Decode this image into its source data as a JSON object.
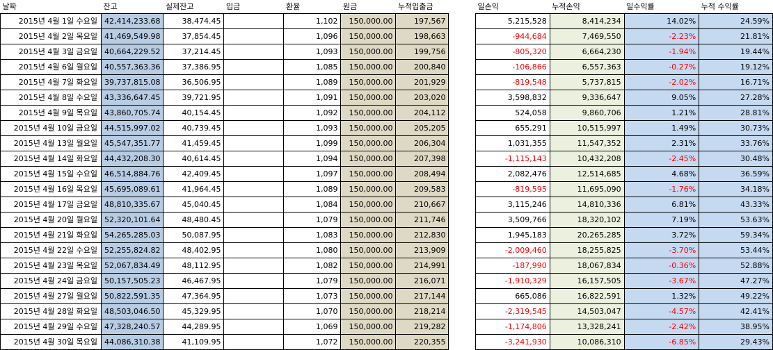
{
  "left_table": {
    "headers": [
      "날짜",
      "잔고",
      "실제잔고",
      "입금",
      "환율",
      "원금",
      "누적입출금"
    ],
    "rows": [
      [
        "2015년 4월 1일 수요일",
        "42,414,233.68",
        "38,474.45",
        "",
        "1,102",
        "150,000.00",
        "197,567"
      ],
      [
        "2015년 4월 2일 목요일",
        "41,469,549.98",
        "37,854.45",
        "",
        "1,096",
        "150,000.00",
        "198,663"
      ],
      [
        "2015년 4월 3일 금요일",
        "40,664,229.52",
        "37,214.45",
        "",
        "1,093",
        "150,000.00",
        "199,756"
      ],
      [
        "2015년 4월 6일 월요일",
        "40,557,363.36",
        "37,386.95",
        "",
        "1,085",
        "150,000.00",
        "200,840"
      ],
      [
        "2015년 4월 7일 화요일",
        "39,737,815.08",
        "36,506.95",
        "",
        "1,089",
        "150,000.00",
        "201,929"
      ],
      [
        "2015년 4월 8일 수요일",
        "43,336,647.45",
        "39,721.95",
        "",
        "1,091",
        "150,000.00",
        "203,020"
      ],
      [
        "2015년 4월 9일 목요일",
        "43,860,705.74",
        "40,154.45",
        "",
        "1,092",
        "150,000.00",
        "204,112"
      ],
      [
        "2015년 4월 10일 금요일",
        "44,515,997.02",
        "40,739.45",
        "",
        "1,093",
        "150,000.00",
        "205,205"
      ],
      [
        "2015년 4월 13일 월요일",
        "45,547,351.77",
        "41,459.45",
        "",
        "1,099",
        "150,000.00",
        "206,304"
      ],
      [
        "2015년 4월 14일 화요일",
        "44,432,208.30",
        "40,614.45",
        "",
        "1,094",
        "150,000.00",
        "207,398"
      ],
      [
        "2015년 4월 15일 수요일",
        "46,514,884.76",
        "42,409.45",
        "",
        "1,097",
        "150,000.00",
        "208,494"
      ],
      [
        "2015년 4월 16일 목요일",
        "45,695,089.61",
        "41,964.45",
        "",
        "1,089",
        "150,000.00",
        "209,583"
      ],
      [
        "2015년 4월 17일 금요일",
        "48,810,335.67",
        "45,040.45",
        "",
        "1,084",
        "150,000.00",
        "210,667"
      ],
      [
        "2015년 4월 20일 월요일",
        "52,320,101.64",
        "48,480.45",
        "",
        "1,079",
        "150,000.00",
        "211,746"
      ],
      [
        "2015년 4월 21일 화요일",
        "54,265,285.03",
        "50,087.95",
        "",
        "1,083",
        "150,000.00",
        "212,830"
      ],
      [
        "2015년 4월 22일 수요일",
        "52,255,824.82",
        "48,402.95",
        "",
        "1,080",
        "150,000.00",
        "213,909"
      ],
      [
        "2015년 4월 23일 목요일",
        "52,067,834.49",
        "48,112.95",
        "",
        "1,082",
        "150,000.00",
        "214,991"
      ],
      [
        "2015년 4월 24일 금요일",
        "50,157,505.23",
        "46,467.95",
        "",
        "1,079",
        "150,000.00",
        "216,071"
      ],
      [
        "2015년 4월 27일 월요일",
        "50,822,591.35",
        "47,364.95",
        "",
        "1,073",
        "150,000.00",
        "217,144"
      ],
      [
        "2015년 4월 28일 화요일",
        "48,503,046.50",
        "45,329.95",
        "",
        "1,070",
        "150,000.00",
        "218,214"
      ],
      [
        "2015년 4월 29일 수요일",
        "47,328,240.57",
        "44,289.95",
        "",
        "1,069",
        "150,000.00",
        "219,282"
      ],
      [
        "2015년 4월 30일 목요일",
        "44,086,310.38",
        "41,109.95",
        "",
        "1,072",
        "150,000.00",
        "220,355"
      ]
    ]
  },
  "right_table": {
    "headers": [
      "일손익",
      "누적손익",
      "일수익률",
      "누적 수익률"
    ],
    "rows": [
      [
        "5,215,528",
        "8,414,234",
        "14.02%",
        "24.59%"
      ],
      [
        "-944,684",
        "7,469,550",
        "-2.23%",
        "21.81%"
      ],
      [
        "-805,320",
        "6,664,230",
        "-1.94%",
        "19.44%"
      ],
      [
        "-106,866",
        "6,557,363",
        "-0.27%",
        "19.12%"
      ],
      [
        "-819,548",
        "5,737,815",
        "-2.02%",
        "16.71%"
      ],
      [
        "3,598,832",
        "9,336,647",
        "9.05%",
        "27.28%"
      ],
      [
        "524,058",
        "9,860,706",
        "1.21%",
        "28.81%"
      ],
      [
        "655,291",
        "10,515,997",
        "1.49%",
        "30.73%"
      ],
      [
        "1,031,355",
        "11,547,352",
        "2.31%",
        "33.76%"
      ],
      [
        "-1,115,143",
        "10,432,208",
        "-2.45%",
        "30.48%"
      ],
      [
        "2,082,476",
        "12,514,685",
        "4.68%",
        "36.59%"
      ],
      [
        "-819,595",
        "11,695,090",
        "-1.76%",
        "34.18%"
      ],
      [
        "3,115,246",
        "14,810,336",
        "6.81%",
        "43.33%"
      ],
      [
        "3,509,766",
        "18,320,102",
        "7.19%",
        "53.63%"
      ],
      [
        "1,945,183",
        "20,265,285",
        "3.72%",
        "59.34%"
      ],
      [
        "-2,009,460",
        "18,255,825",
        "-3.70%",
        "53.44%"
      ],
      [
        "-187,990",
        "18,067,834",
        "-0.36%",
        "52.88%"
      ],
      [
        "-1,910,329",
        "16,157,505",
        "-3.67%",
        "47.27%"
      ],
      [
        "665,086",
        "16,822,591",
        "1.32%",
        "49.22%"
      ],
      [
        "-2,319,545",
        "14,503,047",
        "-4.57%",
        "42.41%"
      ],
      [
        "-1,174,806",
        "13,328,241",
        "-2.42%",
        "38.95%"
      ],
      [
        "-3,241,930",
        "10,086,310",
        "-6.85%",
        "29.43%"
      ]
    ]
  },
  "colors": {
    "balance_fill": "#b8cce4",
    "principal_fill": "#ddd9c4",
    "cumulative_fill": "#ebf1de",
    "return_fill": "#c5d9f1",
    "negative_text": "#ff0000"
  }
}
